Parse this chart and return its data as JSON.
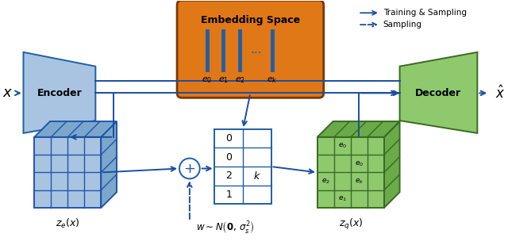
{
  "bg_color": "#ffffff",
  "blue_light": "#a8c4e0",
  "blue_mid": "#7ba7cc",
  "blue_dark": "#1f5fa6",
  "blue_edge": "#2255aa",
  "green_light": "#8ec96e",
  "green_mid": "#6aaa4a",
  "green_dark": "#3a6a20",
  "orange_face": "#e07818",
  "orange_edge": "#7a3800",
  "arrow_color": "#1a4fa0",
  "encoder_label": "Encoder",
  "decoder_label": "Decoder",
  "embed_label": "Embedding Space",
  "ze_label": "$z_e(x)$",
  "zq_label": "$z_q(x)$",
  "noise_label": "$w{\\sim}N\\left(\\mathbf{0},\\,\\sigma_s^2\\right)$",
  "x_label": "$x$",
  "xhat_label": "$\\hat{x}$",
  "legend_solid": "Training & Sampling",
  "legend_dashed": "Sampling",
  "embed_sublabels": [
    "$e_0$",
    "$e_1$",
    "$e_2$",
    "$e_k$"
  ],
  "grid_nums": [
    "0",
    "0",
    "2",
    "1"
  ],
  "grid_label_k": "$k$",
  "zq_labels": [
    {
      "text": "$e_0$",
      "col": 1,
      "row": 0
    },
    {
      "text": "$e_0$",
      "col": 2,
      "row": 1
    },
    {
      "text": "$e_2$",
      "col": 0,
      "row": 2
    },
    {
      "text": "$e_k$",
      "col": 2,
      "row": 2
    },
    {
      "text": "$e_1$",
      "col": 1,
      "row": 3
    }
  ]
}
